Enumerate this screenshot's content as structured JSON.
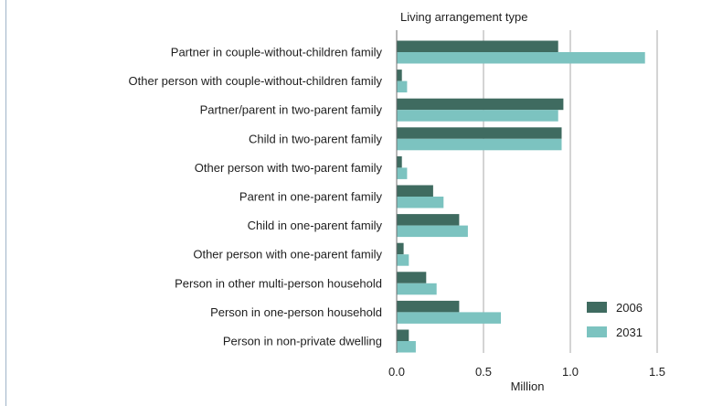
{
  "chart_data": {
    "type": "bar",
    "orientation": "horizontal",
    "title": "Living arrangement type",
    "xlabel": "Million",
    "ylabel": "",
    "xlim": [
      0,
      1.5
    ],
    "xticks": [
      0.0,
      0.5,
      1.0,
      1.5
    ],
    "xtick_labels": [
      "0.0",
      "0.5",
      "1.0",
      "1.5"
    ],
    "grid": "vertical",
    "legend_position": "bottom-right",
    "categories": [
      "Partner in couple-without-children family",
      "Other person with couple-without-children family",
      "Partner/parent in two-parent family",
      "Child in two-parent family",
      "Other person with two-parent family",
      "Parent in one-parent family",
      "Child in one-parent family",
      "Other person with one-parent family",
      "Person in other multi-person household",
      "Person in one-person household",
      "Person in non-private dwelling"
    ],
    "series": [
      {
        "name": "2006",
        "color": "#3f6b60",
        "values": [
          0.93,
          0.03,
          0.96,
          0.95,
          0.03,
          0.21,
          0.36,
          0.04,
          0.17,
          0.36,
          0.07
        ]
      },
      {
        "name": "2031",
        "color": "#7cc3c0",
        "values": [
          1.43,
          0.06,
          0.93,
          0.95,
          0.06,
          0.27,
          0.41,
          0.07,
          0.23,
          0.6,
          0.11
        ]
      }
    ]
  }
}
